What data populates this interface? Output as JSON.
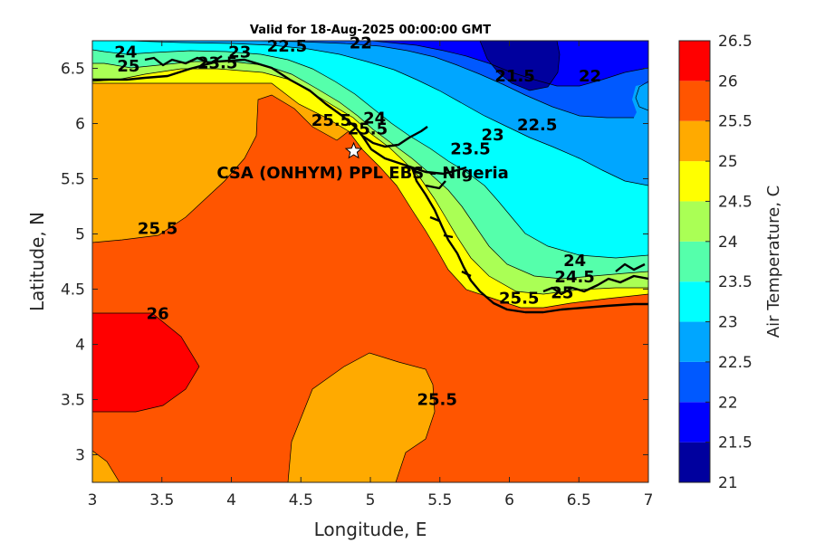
{
  "chart_data": {
    "type": "contour",
    "title": "Valid for 18-Aug-2025 00:00:00 GMT",
    "xlabel": "Longitude, E",
    "ylabel": "Latitude, N",
    "xlim": [
      3,
      7
    ],
    "ylim": [
      2.75,
      6.75
    ],
    "xticks": [
      "3",
      "3.5",
      "4",
      "4.5",
      "5",
      "5.5",
      "6",
      "6.5",
      "7"
    ],
    "yticks": [
      "3",
      "3.5",
      "4",
      "4.5",
      "5",
      "5.5",
      "6",
      "6.5"
    ],
    "colorbar": {
      "label": "Air Temperature, C",
      "levels": [
        21,
        21.5,
        22,
        22.5,
        23,
        23.5,
        24,
        24.5,
        25,
        25.5,
        26,
        26.5
      ],
      "ticks": [
        "21",
        "21.5",
        "22",
        "22.5",
        "23",
        "23.5",
        "24",
        "24.5",
        "25",
        "25.5",
        "26",
        "26.5"
      ],
      "colors": [
        "#00009e",
        "#0000ff",
        "#0059ff",
        "#00a6ff",
        "#00ffff",
        "#55ffab",
        "#aaff55",
        "#ffff00",
        "#ffaa00",
        "#ff5500",
        "#ff0000",
        "#aa0000"
      ]
    },
    "site": {
      "label": "CSA (ONHYM) PPL EBS - Nigeria",
      "lon": 4.88,
      "lat": 5.75
    },
    "contour_labels": [
      {
        "text": "24",
        "lon": 3.24,
        "lat": 6.6
      },
      {
        "text": "25",
        "lon": 3.26,
        "lat": 6.47
      },
      {
        "text": "23",
        "lon": 4.06,
        "lat": 6.6
      },
      {
        "text": "23.5",
        "lon": 3.9,
        "lat": 6.5
      },
      {
        "text": "22.5",
        "lon": 4.4,
        "lat": 6.65
      },
      {
        "text": "22",
        "lon": 4.93,
        "lat": 6.68
      },
      {
        "text": "21.5",
        "lon": 6.04,
        "lat": 6.38
      },
      {
        "text": "22",
        "lon": 6.58,
        "lat": 6.38
      },
      {
        "text": "25.5",
        "lon": 4.72,
        "lat": 5.98
      },
      {
        "text": "24",
        "lon": 5.03,
        "lat": 6.0
      },
      {
        "text": "25.5",
        "lon": 4.98,
        "lat": 5.9
      },
      {
        "text": "22.5",
        "lon": 6.2,
        "lat": 5.94
      },
      {
        "text": "23",
        "lon": 5.88,
        "lat": 5.85
      },
      {
        "text": "23.5",
        "lon": 5.72,
        "lat": 5.72
      },
      {
        "text": "25.5",
        "lon": 3.47,
        "lat": 5.0
      },
      {
        "text": "24",
        "lon": 6.47,
        "lat": 4.71
      },
      {
        "text": "24.5",
        "lon": 6.47,
        "lat": 4.56
      },
      {
        "text": "25.5",
        "lon": 6.07,
        "lat": 4.37
      },
      {
        "text": "25",
        "lon": 6.38,
        "lat": 4.42
      },
      {
        "text": "26",
        "lon": 3.47,
        "lat": 4.23
      },
      {
        "text": "25.5",
        "lon": 5.48,
        "lat": 3.45
      }
    ]
  }
}
